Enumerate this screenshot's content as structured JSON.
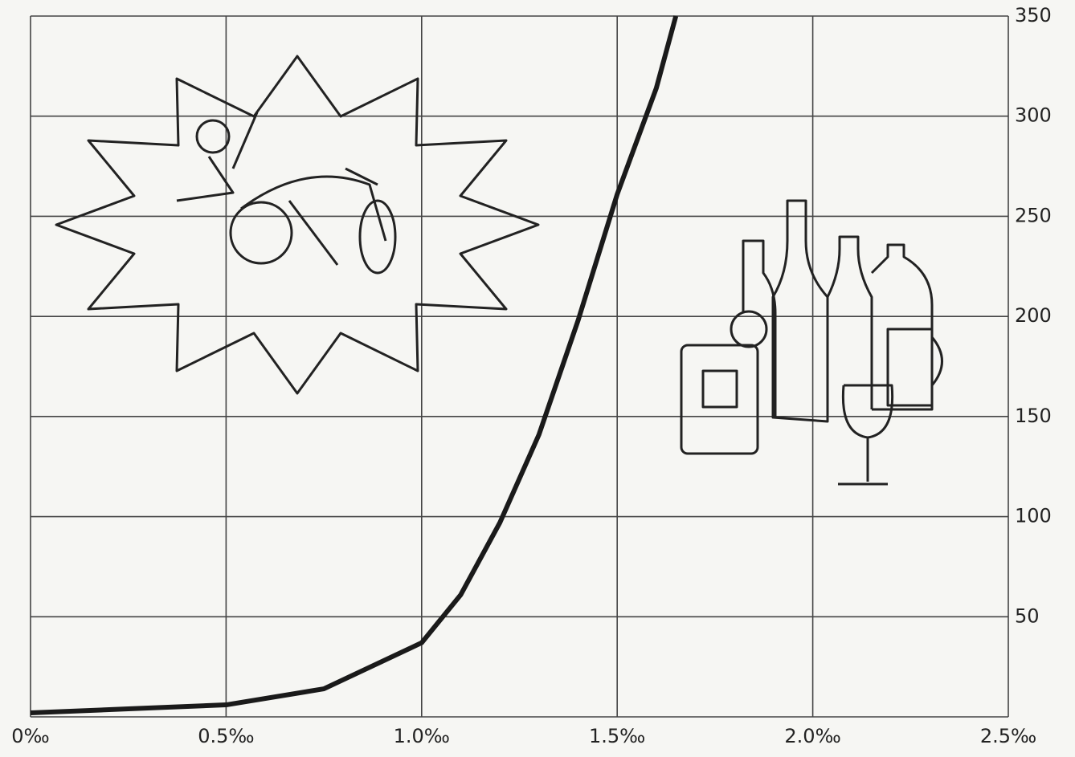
{
  "chart_data": {
    "type": "line",
    "x": [
      0,
      0.25,
      0.5,
      0.75,
      1.0,
      1.1,
      1.2,
      1.3,
      1.4,
      1.5,
      1.6,
      1.65
    ],
    "series": [
      {
        "color": "#1a1a1a",
        "values": [
          2,
          4,
          6,
          14,
          37,
          61,
          97,
          141,
          198,
          261,
          314,
          350
        ]
      }
    ],
    "xlim": [
      0,
      2.5
    ],
    "xticks": [
      {
        "value": 0,
        "label": "0‰"
      },
      {
        "value": 0.5,
        "label": "0.5‰"
      },
      {
        "value": 1.0,
        "label": "1.0‰"
      },
      {
        "value": 1.5,
        "label": "1.5‰"
      },
      {
        "value": 2.0,
        "label": "2.0‰"
      },
      {
        "value": 2.5,
        "label": "2.5‰"
      }
    ],
    "ylim": [
      0,
      350
    ],
    "yticks": [
      50,
      100,
      150,
      200,
      250,
      300,
      350
    ],
    "grid": true
  }
}
